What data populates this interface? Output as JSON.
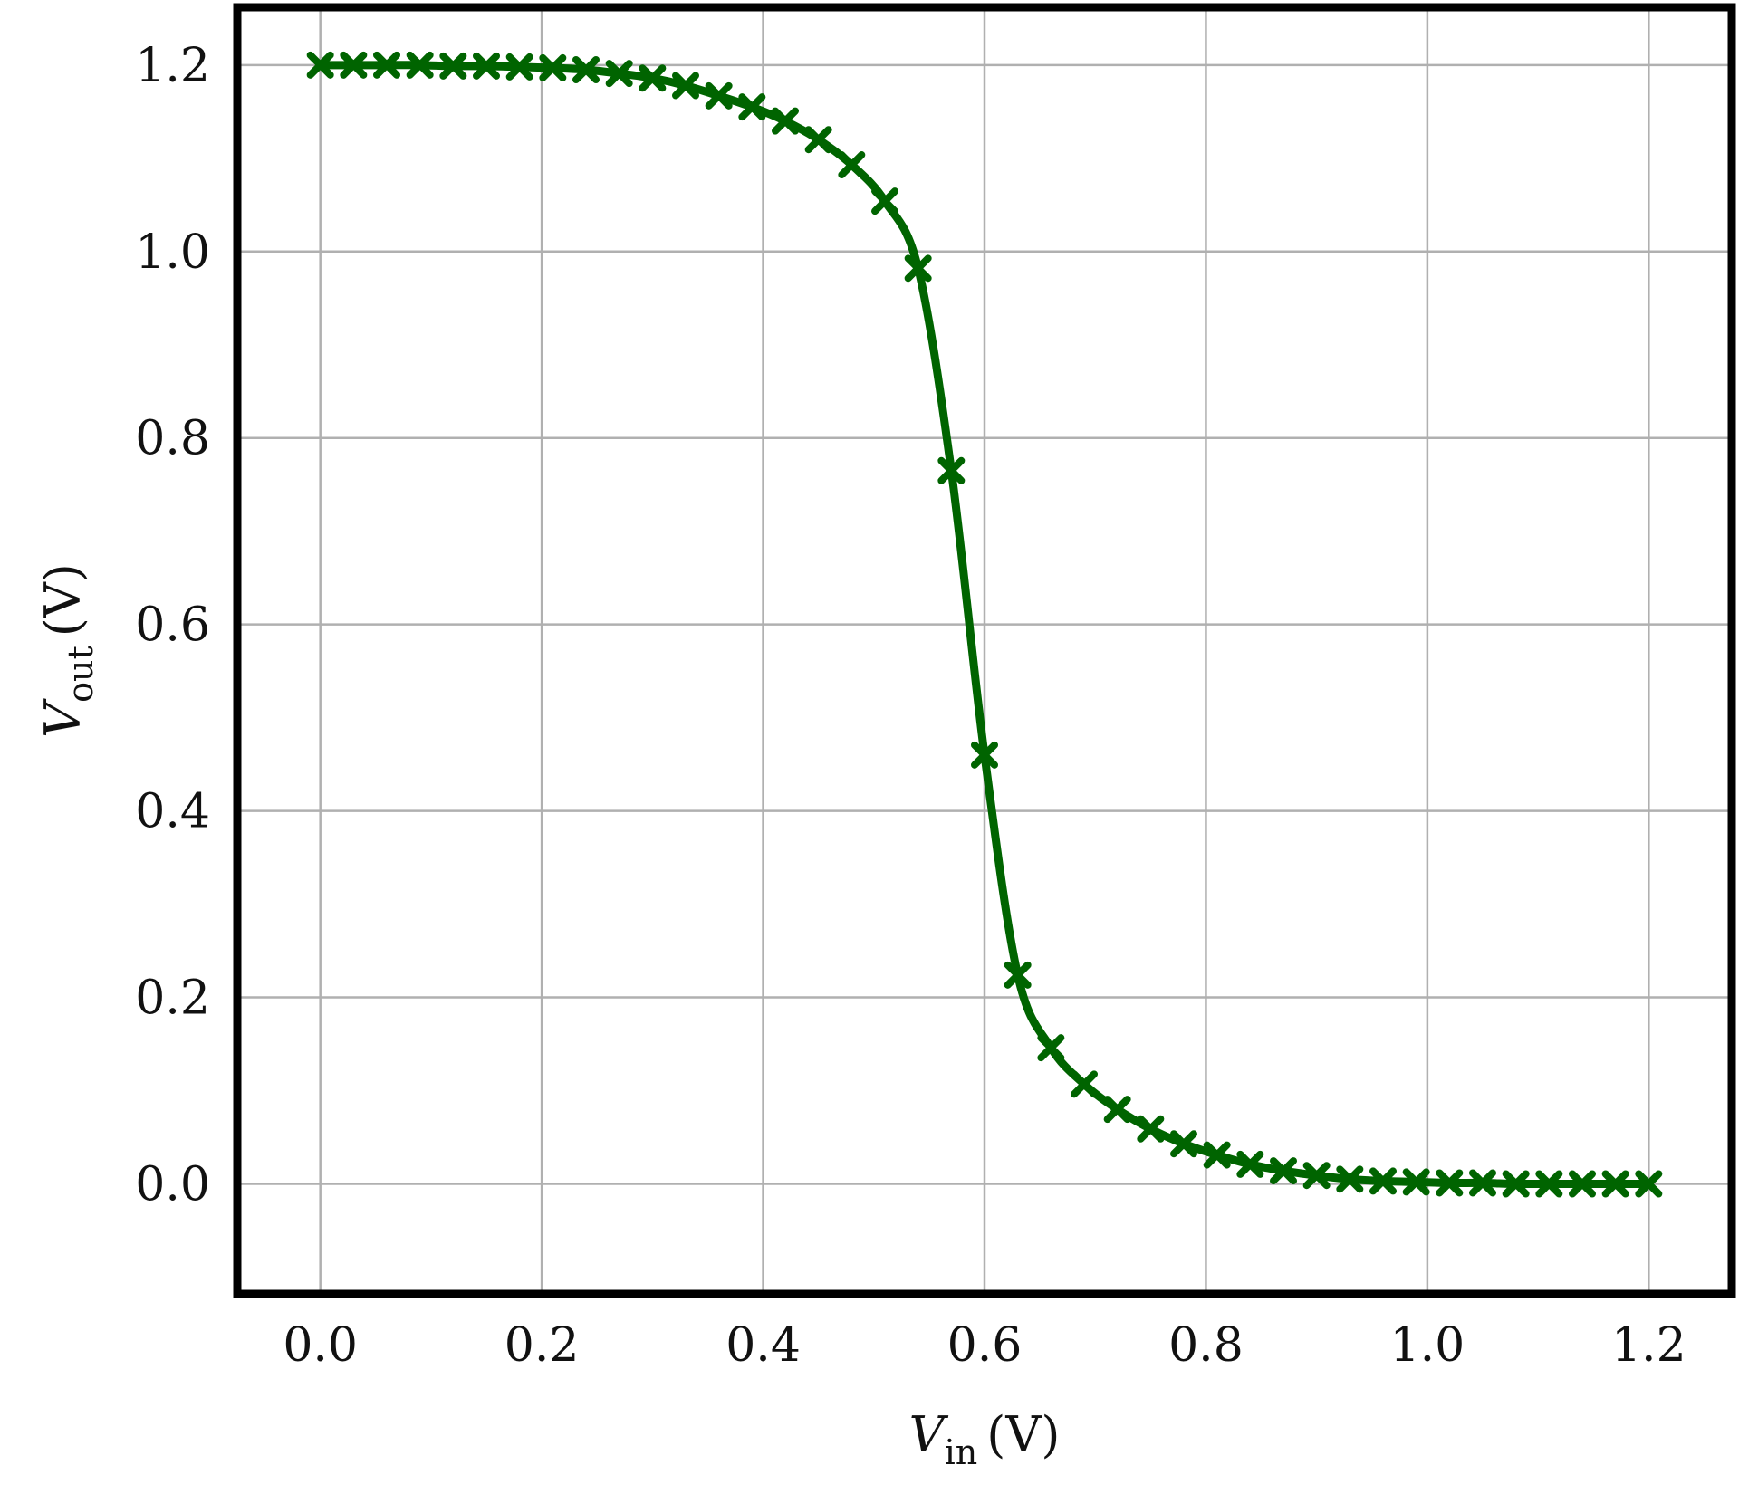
{
  "chart_data": {
    "type": "line",
    "xlabel": {
      "main": "V",
      "sub": "in",
      "unit": "(V)"
    },
    "ylabel": {
      "main": "V",
      "sub": "out",
      "unit": "(V)"
    },
    "xlim": [
      -0.075,
      1.275
    ],
    "ylim": [
      -0.118,
      1.262
    ],
    "x_ticks": [
      "0.0",
      "0.2",
      "0.4",
      "0.6",
      "0.8",
      "1.0",
      "1.2"
    ],
    "y_ticks": [
      "0.0",
      "0.2",
      "0.4",
      "0.6",
      "0.8",
      "1.0",
      "1.2"
    ],
    "x_tick_values": [
      0.0,
      0.2,
      0.4,
      0.6,
      0.8,
      1.0,
      1.2
    ],
    "y_tick_values": [
      0.0,
      0.2,
      0.4,
      0.6,
      0.8,
      1.0,
      1.2
    ],
    "grid": true,
    "colors": {
      "series": "#006400",
      "grid": "#b0b0b0",
      "frame": "#000000"
    },
    "series": [
      {
        "marker": "x-filled",
        "x": [
          0.0,
          0.03,
          0.06,
          0.09,
          0.12,
          0.15,
          0.18,
          0.21,
          0.24,
          0.27,
          0.3,
          0.33,
          0.36,
          0.39,
          0.42,
          0.45,
          0.48,
          0.51,
          0.54,
          0.57,
          0.6,
          0.63,
          0.66,
          0.69,
          0.72,
          0.75,
          0.78,
          0.81,
          0.84,
          0.87,
          0.9,
          0.93,
          0.96,
          0.99,
          1.02,
          1.05,
          1.08,
          1.11,
          1.14,
          1.17,
          1.2
        ],
        "y": [
          1.2,
          1.2,
          1.2,
          1.2,
          1.199,
          1.199,
          1.198,
          1.197,
          1.195,
          1.191,
          1.186,
          1.178,
          1.167,
          1.155,
          1.14,
          1.12,
          1.093,
          1.054,
          0.982,
          0.765,
          0.46,
          0.224,
          0.146,
          0.107,
          0.08,
          0.059,
          0.043,
          0.031,
          0.021,
          0.014,
          0.009,
          0.005,
          0.003,
          0.002,
          0.001,
          0.001,
          0.0,
          0.0,
          0.0,
          0.0,
          0.0
        ]
      }
    ]
  }
}
